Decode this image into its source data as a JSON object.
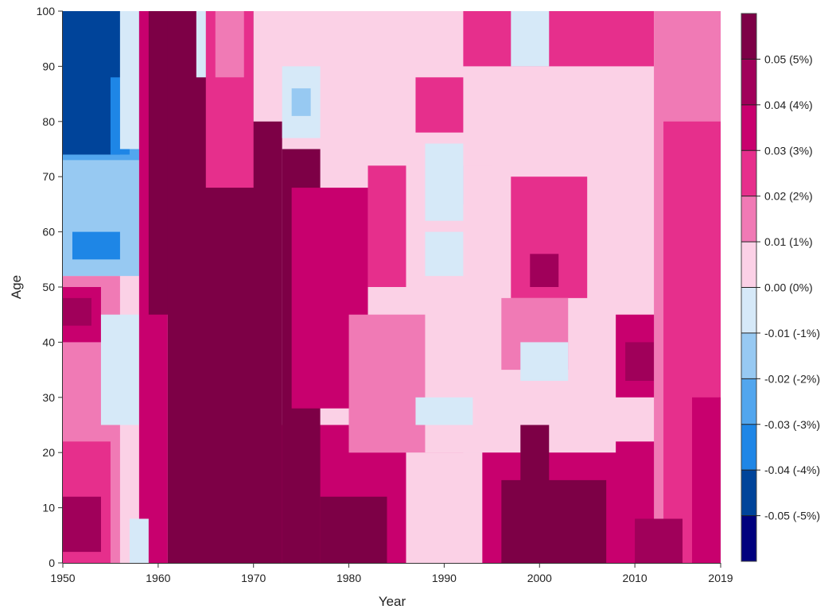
{
  "chart_data": {
    "type": "heatmap",
    "title": "",
    "xlabel": "Year",
    "ylabel": "Age",
    "xlim": [
      1950,
      2019
    ],
    "ylim": [
      0,
      100
    ],
    "x_ticks": [
      "1950",
      "1960",
      "1970",
      "1980",
      "1990",
      "2000",
      "2010",
      "2019"
    ],
    "y_ticks": [
      "0",
      "10",
      "20",
      "30",
      "40",
      "50",
      "60",
      "70",
      "80",
      "90",
      "100"
    ],
    "legend_position": "right",
    "legend": {
      "colors": [
        "#7d0046",
        "#a0005a",
        "#c8006e",
        "#e62f8c",
        "#f07ab5",
        "#fbd1e6",
        "#d6e9f8",
        "#97c9f2",
        "#52a6ee",
        "#1e86e6",
        "#00449a",
        "#00007e"
      ],
      "labels": [
        "0.05 (5%)",
        "0.04 (4%)",
        "0.03 (3%)",
        "0.02 (2%)",
        "0.01 (1%)",
        "0.00 (0%)",
        "-0.01 (-1%)",
        "-0.02 (-2%)",
        "-0.03 (-3%)",
        "-0.04 (-4%)",
        "-0.05 (-5%)"
      ]
    },
    "regions": [
      {
        "x": [
          1950,
          2019
        ],
        "y": [
          0,
          100
        ],
        "value": 0.005
      },
      {
        "x": [
          1950,
          1956
        ],
        "y": [
          0,
          52
        ],
        "value": 0.015
      },
      {
        "x": [
          1950,
          1955
        ],
        "y": [
          0,
          22
        ],
        "value": 0.025
      },
      {
        "x": [
          1950,
          1954
        ],
        "y": [
          2,
          12
        ],
        "value": 0.045
      },
      {
        "x": [
          1950,
          1954
        ],
        "y": [
          40,
          50
        ],
        "value": 0.03
      },
      {
        "x": [
          1950,
          1953
        ],
        "y": [
          43,
          48
        ],
        "value": 0.045
      },
      {
        "x": [
          1954,
          1958
        ],
        "y": [
          25,
          45
        ],
        "value": -0.005
      },
      {
        "x": [
          1950,
          1958
        ],
        "y": [
          52,
          75
        ],
        "value": -0.015
      },
      {
        "x": [
          1951,
          1956
        ],
        "y": [
          55,
          60
        ],
        "value": -0.035
      },
      {
        "x": [
          1950,
          1958
        ],
        "y": [
          73,
          100
        ],
        "value": -0.025
      },
      {
        "x": [
          1950,
          1956
        ],
        "y": [
          74,
          100
        ],
        "value": -0.05
      },
      {
        "x": [
          1955,
          1957
        ],
        "y": [
          74,
          88
        ],
        "value": -0.035
      },
      {
        "x": [
          1956,
          1958
        ],
        "y": [
          75,
          100
        ],
        "value": -0.01
      },
      {
        "x": [
          1958,
          1961
        ],
        "y": [
          0,
          100
        ],
        "value": 0.03
      },
      {
        "x": [
          1959,
          1962
        ],
        "y": [
          45,
          100
        ],
        "value": 0.05
      },
      {
        "x": [
          1957,
          1959
        ],
        "y": [
          0,
          8
        ],
        "value": -0.01
      },
      {
        "x": [
          1962,
          1986
        ],
        "y": [
          0,
          25
        ],
        "value": 0.03
      },
      {
        "x": [
          1961,
          1973
        ],
        "y": [
          0,
          100
        ],
        "value": 0.055
      },
      {
        "x": [
          1973,
          1977
        ],
        "y": [
          0,
          75
        ],
        "value": 0.055
      },
      {
        "x": [
          1977,
          1984
        ],
        "y": [
          0,
          12
        ],
        "value": 0.055
      },
      {
        "x": [
          1964,
          1967
        ],
        "y": [
          88,
          100
        ],
        "value": -0.01
      },
      {
        "x": [
          1965,
          1970
        ],
        "y": [
          68,
          100
        ],
        "value": 0.025
      },
      {
        "x": [
          1966,
          1969
        ],
        "y": [
          88,
          100
        ],
        "value": 0.015
      },
      {
        "x": [
          1974,
          1982
        ],
        "y": [
          28,
          68
        ],
        "value": 0.03
      },
      {
        "x": [
          1982,
          1986
        ],
        "y": [
          50,
          72
        ],
        "value": 0.02
      },
      {
        "x": [
          1980,
          1992
        ],
        "y": [
          20,
          45
        ],
        "value": 0.01
      },
      {
        "x": [
          1980,
          1986
        ],
        "y": [
          20,
          28
        ],
        "value": 0.015
      },
      {
        "x": [
          1970,
          1978
        ],
        "y": [
          80,
          100
        ],
        "value": 0.005
      },
      {
        "x": [
          1973,
          1977
        ],
        "y": [
          77,
          90
        ],
        "value": -0.01
      },
      {
        "x": [
          1974,
          1976
        ],
        "y": [
          81,
          86
        ],
        "value": -0.015
      },
      {
        "x": [
          1988,
          1995
        ],
        "y": [
          20,
          72
        ],
        "value": 0.005
      },
      {
        "x": [
          1989,
          1992
        ],
        "y": [
          65,
          72
        ],
        "value": -0.02
      },
      {
        "x": [
          1988,
          1992
        ],
        "y": [
          62,
          76
        ],
        "value": -0.01
      },
      {
        "x": [
          1988,
          1992
        ],
        "y": [
          52,
          60
        ],
        "value": -0.01
      },
      {
        "x": [
          1987,
          1992
        ],
        "y": [
          78,
          88
        ],
        "value": 0.02
      },
      {
        "x": [
          1992,
          2012
        ],
        "y": [
          90,
          100
        ],
        "value": 0.02
      },
      {
        "x": [
          1997,
          2001
        ],
        "y": [
          90,
          100
        ],
        "value": -0.01
      },
      {
        "x": [
          1997,
          2005
        ],
        "y": [
          48,
          70
        ],
        "value": 0.025
      },
      {
        "x": [
          1999,
          2002
        ],
        "y": [
          50,
          56
        ],
        "value": 0.045
      },
      {
        "x": [
          1996,
          2003
        ],
        "y": [
          35,
          48
        ],
        "value": 0.015
      },
      {
        "x": [
          1998,
          2003
        ],
        "y": [
          33,
          40
        ],
        "value": -0.01
      },
      {
        "x": [
          1987,
          1993
        ],
        "y": [
          25,
          30
        ],
        "value": -0.005
      },
      {
        "x": [
          1994,
          2014
        ],
        "y": [
          0,
          20
        ],
        "value": 0.03
      },
      {
        "x": [
          1996,
          2007
        ],
        "y": [
          0,
          15
        ],
        "value": 0.05
      },
      {
        "x": [
          1998,
          2001
        ],
        "y": [
          0,
          25
        ],
        "value": 0.05
      },
      {
        "x": [
          2008,
          2013
        ],
        "y": [
          30,
          45
        ],
        "value": 0.03
      },
      {
        "x": [
          2009,
          2012
        ],
        "y": [
          33,
          40
        ],
        "value": 0.045
      },
      {
        "x": [
          2008,
          2013
        ],
        "y": [
          15,
          22
        ],
        "value": 0.035
      },
      {
        "x": [
          2012,
          2019
        ],
        "y": [
          0,
          100
        ],
        "value": 0.015
      },
      {
        "x": [
          2013,
          2019
        ],
        "y": [
          0,
          80
        ],
        "value": 0.025
      },
      {
        "x": [
          2016,
          2019
        ],
        "y": [
          0,
          30
        ],
        "value": 0.03
      },
      {
        "x": [
          2010,
          2015
        ],
        "y": [
          0,
          8
        ],
        "value": 0.045
      }
    ]
  }
}
